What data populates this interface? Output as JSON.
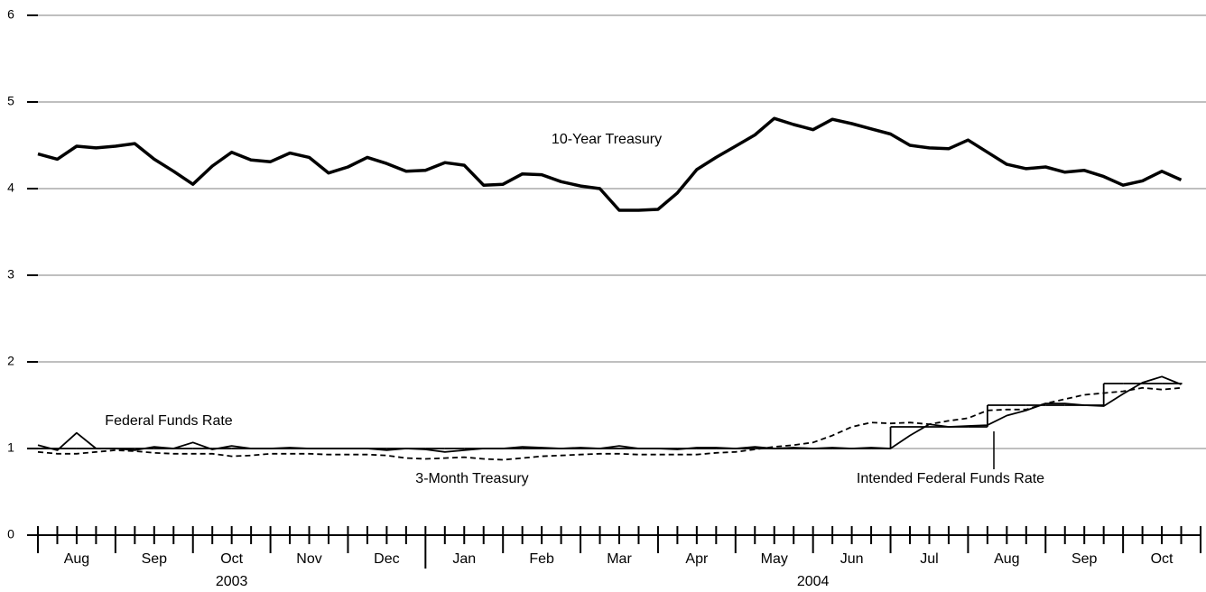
{
  "chart_data": {
    "type": "line",
    "categories": [
      null,
      null,
      "Aug",
      null,
      null,
      null,
      "Sep",
      null,
      null,
      null,
      "Oct",
      null,
      null,
      null,
      "Nov",
      null,
      null,
      null,
      "Dec",
      null,
      null,
      null,
      "Jan",
      null,
      null,
      null,
      "Feb",
      null,
      null,
      null,
      "Mar",
      null,
      null,
      null,
      "Apr",
      null,
      null,
      null,
      "May",
      null,
      null,
      null,
      "Jun",
      null,
      null,
      null,
      "Jul",
      null,
      null,
      null,
      "Aug",
      null,
      null,
      null,
      "Sep",
      null,
      null,
      null,
      "Oct",
      null
    ],
    "year_labels": [
      "2003",
      "2004"
    ],
    "ylim": [
      0,
      6
    ],
    "yticks": [
      0,
      1,
      2,
      3,
      4,
      5,
      6
    ],
    "grid": true,
    "series": [
      {
        "name": "10-Year Treasury",
        "color": "#000000",
        "style": "thick",
        "values": [
          4.4,
          4.34,
          4.49,
          4.47,
          4.49,
          4.52,
          4.34,
          4.2,
          4.05,
          4.26,
          4.42,
          4.33,
          4.31,
          4.41,
          4.36,
          4.18,
          4.25,
          4.36,
          4.29,
          4.2,
          4.21,
          4.3,
          4.27,
          4.04,
          4.05,
          4.17,
          4.16,
          4.08,
          4.03,
          4.0,
          3.75,
          3.75,
          3.76,
          3.95,
          4.22,
          4.36,
          4.49,
          4.62,
          4.81,
          4.74,
          4.68,
          4.8,
          4.75,
          4.69,
          4.63,
          4.5,
          4.47,
          4.46,
          4.56,
          4.42,
          4.28,
          4.23,
          4.25,
          4.19,
          4.21,
          4.14,
          4.04,
          4.09,
          4.2,
          4.1
        ]
      },
      {
        "name": "Federal Funds Rate",
        "color": "#000000",
        "style": "solid",
        "values": [
          1.04,
          0.98,
          1.18,
          1.0,
          1.0,
          0.98,
          1.02,
          1.0,
          1.07,
          0.99,
          1.03,
          1.0,
          1.0,
          1.01,
          1.0,
          1.0,
          1.0,
          1.0,
          0.98,
          1.0,
          0.99,
          0.96,
          0.98,
          1.0,
          1.0,
          1.02,
          1.01,
          1.0,
          1.01,
          1.0,
          1.03,
          1.0,
          1.0,
          0.99,
          1.01,
          1.01,
          1.0,
          1.02,
          1.0,
          1.01,
          1.0,
          1.01,
          1.0,
          1.01,
          1.0,
          1.15,
          1.28,
          1.25,
          1.26,
          1.27,
          1.38,
          1.44,
          1.52,
          1.52,
          1.5,
          1.49,
          1.63,
          1.76,
          1.83,
          1.74
        ]
      },
      {
        "name": "3-Month Treasury",
        "color": "#000000",
        "style": "dashed",
        "values": [
          0.96,
          0.94,
          0.94,
          0.96,
          0.98,
          0.97,
          0.95,
          0.94,
          0.94,
          0.94,
          0.91,
          0.92,
          0.94,
          0.94,
          0.94,
          0.93,
          0.93,
          0.93,
          0.92,
          0.89,
          0.88,
          0.89,
          0.9,
          0.88,
          0.87,
          0.89,
          0.91,
          0.92,
          0.93,
          0.94,
          0.94,
          0.93,
          0.93,
          0.93,
          0.93,
          0.95,
          0.96,
          0.99,
          1.02,
          1.04,
          1.07,
          1.15,
          1.25,
          1.3,
          1.29,
          1.3,
          1.28,
          1.32,
          1.35,
          1.44,
          1.45,
          1.45,
          1.52,
          1.57,
          1.62,
          1.64,
          1.66,
          1.7,
          1.68,
          1.7
        ]
      },
      {
        "name": "Intended Federal Funds Rate",
        "color": "#000000",
        "style": "step",
        "values": [
          1.0,
          1.0,
          1.0,
          1.0,
          1.0,
          1.0,
          1.0,
          1.0,
          1.0,
          1.0,
          1.0,
          1.0,
          1.0,
          1.0,
          1.0,
          1.0,
          1.0,
          1.0,
          1.0,
          1.0,
          1.0,
          1.0,
          1.0,
          1.0,
          1.0,
          1.0,
          1.0,
          1.0,
          1.0,
          1.0,
          1.0,
          1.0,
          1.0,
          1.0,
          1.0,
          1.0,
          1.0,
          1.0,
          1.0,
          1.0,
          1.0,
          1.0,
          1.0,
          1.0,
          1.25,
          1.25,
          1.25,
          1.25,
          1.25,
          1.5,
          1.5,
          1.5,
          1.5,
          1.5,
          1.5,
          1.75,
          1.75,
          1.75,
          1.75,
          1.75
        ]
      }
    ]
  }
}
